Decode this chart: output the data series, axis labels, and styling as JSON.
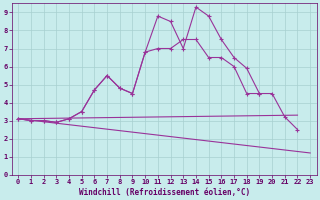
{
  "xlabel": "Windchill (Refroidissement éolien,°C)",
  "bg_color": "#c8ecec",
  "grid_color": "#a8d0d0",
  "line_color": "#993399",
  "xlim": [
    -0.5,
    23.5
  ],
  "ylim": [
    0,
    9.5
  ],
  "xticks": [
    0,
    1,
    2,
    3,
    4,
    5,
    6,
    7,
    8,
    9,
    10,
    11,
    12,
    13,
    14,
    15,
    16,
    17,
    18,
    19,
    20,
    21,
    22,
    23
  ],
  "yticks": [
    0,
    1,
    2,
    3,
    4,
    5,
    6,
    7,
    8,
    9
  ],
  "series": [
    {
      "x": [
        0,
        1,
        2,
        3,
        4,
        5,
        6,
        7,
        8,
        9,
        10,
        11,
        12,
        13,
        14,
        15,
        16,
        17,
        18,
        19,
        20,
        21,
        22
      ],
      "y": [
        3.1,
        3.0,
        3.0,
        2.9,
        3.1,
        3.5,
        4.7,
        5.5,
        4.8,
        4.5,
        6.8,
        8.8,
        8.5,
        7.0,
        9.3,
        8.8,
        7.5,
        6.5,
        5.9,
        4.5,
        4.5,
        3.2,
        2.5
      ],
      "has_markers": true
    },
    {
      "x": [
        0,
        1,
        2,
        3,
        4,
        5,
        6,
        7,
        8,
        9,
        10,
        11,
        12,
        13,
        14,
        15,
        16,
        17,
        18,
        19
      ],
      "y": [
        3.1,
        3.0,
        3.0,
        2.9,
        3.1,
        3.5,
        4.7,
        5.5,
        4.8,
        4.5,
        6.8,
        7.0,
        7.0,
        7.5,
        7.5,
        6.5,
        6.5,
        6.0,
        4.5,
        4.5
      ],
      "has_markers": true
    },
    {
      "x": [
        0,
        22
      ],
      "y": [
        3.1,
        3.3
      ],
      "has_markers": false
    },
    {
      "comment": "line from (0,3.1) declining to (23, 1.2)",
      "x": [
        0,
        23
      ],
      "y": [
        3.1,
        1.2
      ],
      "has_markers": false
    }
  ]
}
